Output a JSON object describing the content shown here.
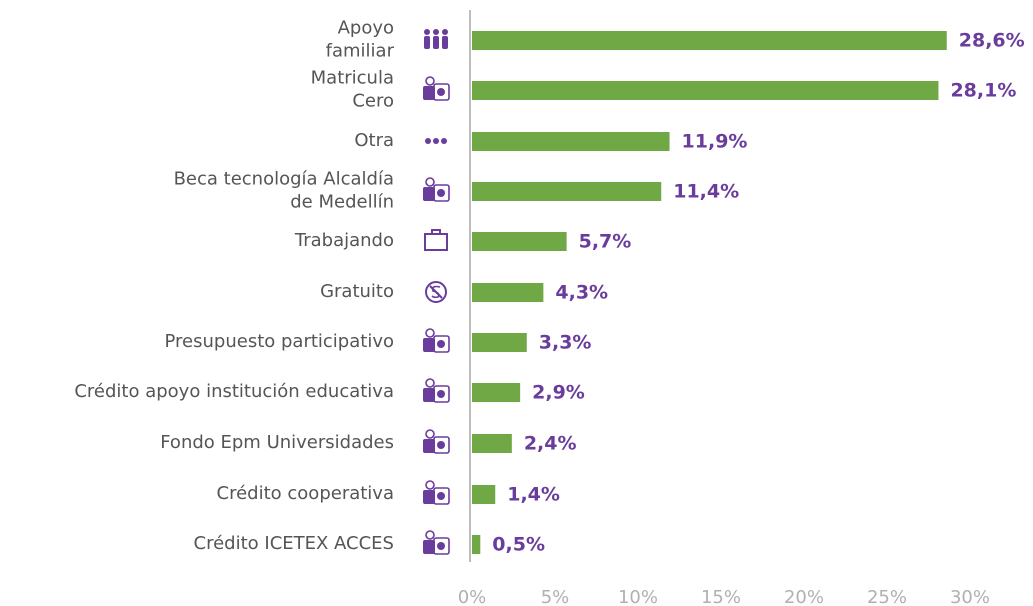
{
  "chart_data": {
    "type": "bar",
    "orientation": "horizontal",
    "categories": [
      "Apoyo\nfamiliar",
      "Matricula\nCero",
      "Otra",
      "Beca tecnología Alcaldía\nde Medellín",
      "Trabajando",
      "Gratuito",
      "Presupuesto participativo",
      "Crédito apoyo institución educativa",
      "Fondo Epm Universidades",
      "Crédito cooperativa",
      "Crédito ICETEX ACCES"
    ],
    "values": [
      28.6,
      28.1,
      11.9,
      11.4,
      5.7,
      4.3,
      3.3,
      2.9,
      2.4,
      1.4,
      0.5
    ],
    "value_labels": [
      "28,6%",
      "28,1%",
      "11,9%",
      "11,4%",
      "5,7%",
      "4,3%",
      "3,3%",
      "2,9%",
      "2,4%",
      "1,4%",
      "0,5%"
    ],
    "color": "#70a845",
    "xlim": [
      0,
      30
    ],
    "xticks": [
      {
        "value": 0,
        "label": "0%"
      },
      {
        "value": 5,
        "label": "5%"
      },
      {
        "value": 10,
        "label": "10%"
      },
      {
        "value": 15,
        "label": "15%"
      },
      {
        "value": 20,
        "label": "20%"
      },
      {
        "value": 25,
        "label": "25%"
      },
      {
        "value": 30,
        "label": "30%"
      }
    ]
  }
}
